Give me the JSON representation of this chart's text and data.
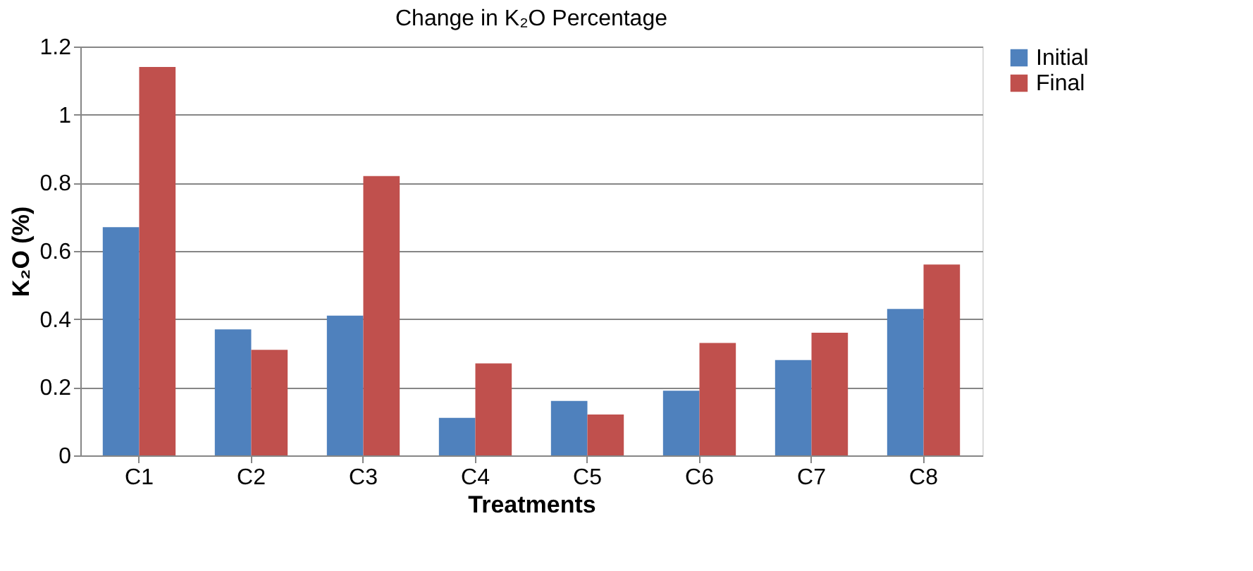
{
  "chart_data": {
    "type": "bar",
    "title": "Change in  K₂O Percentage",
    "xlabel": "Treatments",
    "ylabel": "K₂O (%)",
    "categories": [
      "C1",
      "C2",
      "C3",
      "C4",
      "C5",
      "C6",
      "C7",
      "C8"
    ],
    "series": [
      {
        "name": "Initial",
        "color": "#4f81bd",
        "values": [
          0.67,
          0.37,
          0.41,
          0.11,
          0.16,
          0.19,
          0.28,
          0.43
        ]
      },
      {
        "name": "Final",
        "color": "#c0504d",
        "values": [
          1.14,
          0.31,
          0.82,
          0.27,
          0.12,
          0.33,
          0.36,
          0.56
        ]
      }
    ],
    "ylim": [
      0,
      1.2
    ],
    "yticks": [
      0,
      0.2,
      0.4,
      0.6,
      0.8,
      1,
      1.2
    ],
    "grid": "y",
    "legend": "right"
  }
}
